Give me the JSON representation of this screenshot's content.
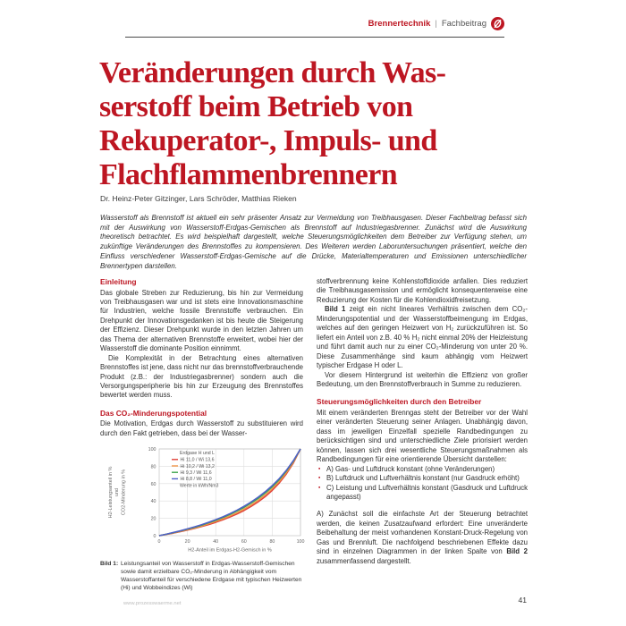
{
  "header": {
    "category": "Brennertechnik",
    "separator": "|",
    "type": "Fachbeitrag"
  },
  "title_lines": [
    "Veränderungen durch Was-",
    "serstoff beim Betrieb von",
    "Rekuperator-, Impuls- und",
    "Flachflammenbrennern"
  ],
  "authors": "Dr. Heinz-Peter Gitzinger, Lars Schröder, Matthias Rieken",
  "abstract": "Wasserstoff als Brennstoff ist aktuell ein sehr präsenter Ansatz zur Vermeidung von Treibhausgasen. Dieser Fachbeitrag befasst sich mit der Auswirkung von Wasserstoff-Erdgas-Gemischen als Brennstoff auf Industriegasbrenner. Zunächst wird die Auswirkung theoretisch betrachtet. Es wird beispielhaft dargestellt, welche Steuerungsmöglichkeiten dem Betreiber zur Verfügung stehen, um zukünftige Veränderungen des Brennstoffes zu kompensieren. Des Weiteren werden Laboruntersuchungen präsentiert, welche den Einfluss verschiedener Wasserstoff-Erdgas-Gemische auf die Drücke, Materialtemperaturen und Emissionen unterschiedlicher Brennertypen darstellen.",
  "left_column": {
    "h1": "Einleitung",
    "p1": "Das globale Streben zur Reduzierung, bis hin zur Vermeidung von Treibhausgasen war und ist stets eine Innovationsmaschine für Industrien, welche fossile Brennstoffe verbrauchen. Ein Drehpunkt der Innovationsgedanken ist bis heute die Steigerung der Effizienz. Dieser Drehpunkt wurde in den letzten Jahren um das Thema der alternativen Brennstoffe erweitert, wobei hier der Wasserstoff die dominante Position einnimmt.",
    "p2": "Die Komplexität in der Betrachtung eines alternativen Brennstoffes ist jene, dass nicht nur das brennstoffverbrauchende Produkt (z.B.: der Industriegasbrenner) sondern auch die Versorgungsperipherie bis hin zur Erzeugung des Brennstoffes bewertet werden muss.",
    "h2": "Das CO₂-Minderungspotential",
    "p3": "Die Motivation, Erdgas durch Wasserstoff zu substituieren wird durch den Fakt getrieben, dass bei der Wasser-"
  },
  "figure": {
    "caption_label": "Bild 1:",
    "caption_text": "Leistungsanteil von Wasserstoff in Erdgas-Wasserstoff-Gemischen sowie damit erzielbare CO₂-Minderung in Abhängigkeit vom Wasserstoffanteil für verschiedene Erdgase mit typischen Heizwerten (Hi) und Wobbeindizes (Wi)"
  },
  "chart_data": {
    "type": "line",
    "title": "",
    "xlabel": "H2-Anteil im Erdgas-H2-Gemisch in %",
    "ylabel_lines": [
      "H2-Leistungsanteil in %",
      "und",
      "CO2-Minderung in %"
    ],
    "xlim": [
      0,
      100
    ],
    "ylim": [
      0,
      100
    ],
    "xticks": [
      0,
      20,
      40,
      60,
      80,
      100
    ],
    "yticks": [
      0,
      20,
      40,
      60,
      80,
      100
    ],
    "grid": true,
    "legend_position": "top-left",
    "legend_title": "Erdgase H und L",
    "legend_note": "Werte in kWh/Nm3",
    "x": [
      0,
      5,
      10,
      15,
      20,
      25,
      30,
      35,
      40,
      45,
      50,
      55,
      60,
      65,
      70,
      75,
      80,
      85,
      90,
      95,
      100
    ],
    "series": [
      {
        "name": "Hi 11,0 / Wi 13,6",
        "color": "#e04038",
        "values": [
          0,
          1.4,
          2.9,
          4.6,
          6.4,
          8.3,
          10.5,
          12.8,
          15.4,
          18.2,
          21.4,
          25.0,
          29.0,
          33.6,
          38.9,
          45.0,
          52.2,
          60.7,
          71.1,
          83.8,
          100
        ]
      },
      {
        "name": "Hi 10,2 / Wi 13,2",
        "color": "#ef9449",
        "values": [
          0,
          1.5,
          3.2,
          4.9,
          6.9,
          8.9,
          11.2,
          13.7,
          16.4,
          19.4,
          22.7,
          26.4,
          30.6,
          35.3,
          40.7,
          46.9,
          54.1,
          62.5,
          72.6,
          84.8,
          100
        ]
      },
      {
        "name": "Hi  9,3 / Wi 11,6",
        "color": "#3da44d",
        "values": [
          0,
          1.7,
          3.5,
          5.4,
          7.5,
          9.7,
          12.1,
          14.8,
          17.7,
          20.9,
          24.4,
          28.3,
          32.6,
          37.5,
          42.9,
          49.2,
          56.3,
          64.6,
          74.4,
          86.0,
          100
        ]
      },
      {
        "name": "Hi  8,8 / Wi 11,0",
        "color": "#4f5fc8",
        "values": [
          0,
          1.8,
          3.7,
          5.7,
          7.9,
          10.2,
          12.7,
          15.5,
          18.5,
          21.8,
          25.4,
          29.4,
          33.8,
          38.8,
          44.3,
          50.6,
          57.7,
          65.9,
          75.4,
          86.6,
          100
        ]
      }
    ]
  },
  "right_column": {
    "p1": "stoffverbrennung keine Kohlenstoffdioxide anfallen. Dies reduziert die Treibhausgasemission und ermöglicht konsequenterweise eine Reduzierung der Kosten für die Kohlendioxidfreisetzung.",
    "p2_bold": "Bild 1",
    "p2_rest": " zeigt ein nicht lineares Verhältnis zwischen dem CO₂-Minderungspotential und der Wasserstoffbeimengung im Erdgas, welches auf den geringen Heizwert von H₂ zurückzuführen ist. So liefert ein Anteil von z.B. 40 % H₂ nicht einmal 20% der Heizleistung und führt damit auch nur zu einer CO₂-Minderung von unter 20 %. Diese Zusammenhänge sind kaum abhängig vom Heizwert typischer Erdgase H oder L.",
    "p3": "Vor diesem Hintergrund ist weiterhin die Effizienz von großer Bedeutung, um den Brennstoffverbrauch in Summe zu reduzieren.",
    "h1": "Steuerungsmöglichkeiten durch den Betreiber",
    "p4": "Mit einem veränderten Brenngas steht der Betreiber vor der Wahl einer veränderten Steuerung seiner Anlagen. Unabhängig davon, dass im jeweiligen Einzelfall spezielle Randbedingungen zu berücksichtigen sind und unterschiedliche Ziele priorisiert werden können, lassen sich drei wesentliche Steuerungsmaßnahmen als Randbedingungen für eine orientierende Übersicht darstellen:",
    "bullets": [
      "A) Gas- und Luftdruck konstant (ohne Veränderungen)",
      "B) Luftdruck und Luftverhältnis konstant (nur Gasdruck erhöht)",
      "C) Leistung und Luftverhältnis konstant (Gasdruck und Luftdruck angepasst)"
    ],
    "p5a": "A) Zunächst soll die einfachste Art der Steuerung betrachtet werden, die keinen Zusatzaufwand erfordert: Eine unveränderte Beibehaltung der meist vorhandenen Konstant-Druck-Regelung von Gas und Brennluft. Die nachfolgend beschriebenen Effekte dazu sind in einzelnen Diagrammen in der linken Spalte von ",
    "p5b": "Bild 2",
    "p5c": " zusammenfassend dargestellt."
  },
  "footer": {
    "url": "www.prozesswaerme.net",
    "page_number": "41"
  },
  "colors": {
    "accent_red": "#bd1622",
    "body_text": "#2e2e2e",
    "grid": "#dedede",
    "axis_text": "#666666"
  }
}
